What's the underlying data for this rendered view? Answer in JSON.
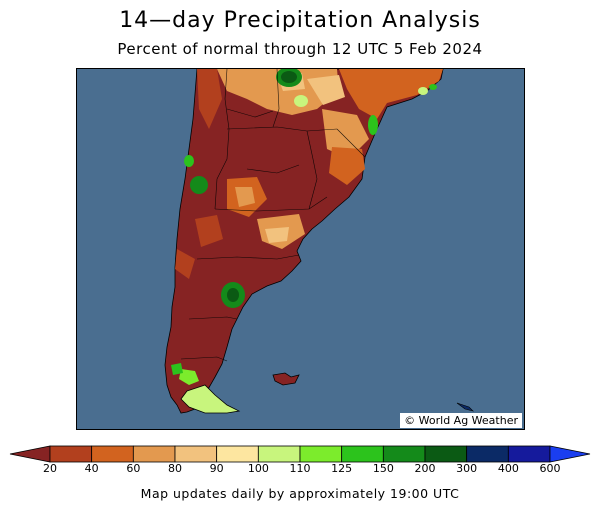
{
  "header": {
    "title": "14—day Precipitation Analysis",
    "subtitle": "Percent of normal through 12 UTC 5 Feb 2024"
  },
  "map": {
    "credit": "© World Ag Weather",
    "ocean_color": "#4a6e90",
    "dominant_land_color": "#862323"
  },
  "legend": {
    "labels": [
      "20",
      "40",
      "60",
      "80",
      "90",
      "100",
      "110",
      "125",
      "150",
      "200",
      "300",
      "400",
      "600"
    ],
    "colors": [
      "#862323",
      "#b2401e",
      "#d2631f",
      "#e3994f",
      "#f2c27e",
      "#fde6a0",
      "#c8f57d",
      "#7cec2c",
      "#2cc31c",
      "#148a1a",
      "#0b5a14",
      "#0b2a66",
      "#151a9c",
      "#1a3ef0"
    ]
  },
  "footer": {
    "note": "Map updates daily by approximately 19:00 UTC"
  }
}
